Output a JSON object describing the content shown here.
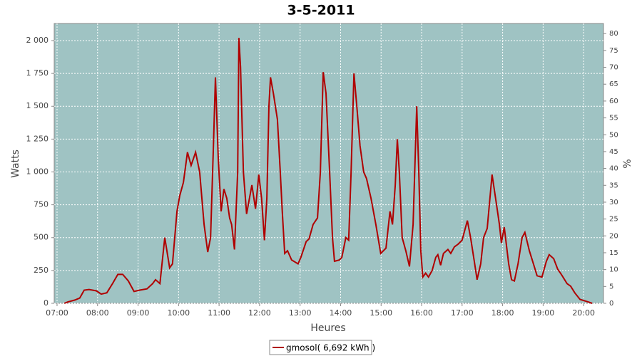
{
  "chart_data": {
    "type": "line",
    "title": "3-5-2011",
    "x_label": "Heures",
    "y_label": "Watts",
    "y2_label": "%",
    "grid": true,
    "legend": "bottom",
    "xlim": [
      6.93,
      20.49
    ],
    "xticks": [
      {
        "value": 7,
        "label": "07:00"
      },
      {
        "value": 8,
        "label": "08:00"
      },
      {
        "value": 9,
        "label": "09:00"
      },
      {
        "value": 10,
        "label": "10:00"
      },
      {
        "value": 11,
        "label": "11:00"
      },
      {
        "value": 12,
        "label": "12:00"
      },
      {
        "value": 13,
        "label": "13:00"
      },
      {
        "value": 14,
        "label": "14:00"
      },
      {
        "value": 15,
        "label": "15:00"
      },
      {
        "value": 16,
        "label": "16:00"
      },
      {
        "value": 17,
        "label": "17:00"
      },
      {
        "value": 18,
        "label": "18:00"
      },
      {
        "value": 19,
        "label": "19:00"
      },
      {
        "value": 20,
        "label": "20:00"
      }
    ],
    "ylim": [
      0,
      2130
    ],
    "yticks": [
      0,
      250,
      500,
      750,
      {
        "value": 1000,
        "label": "1 000"
      },
      {
        "value": 1250,
        "label": "1 250"
      },
      {
        "value": 1500,
        "label": "1 500"
      },
      {
        "value": 1750,
        "label": "1 750"
      },
      {
        "value": 2000,
        "label": "2 000"
      }
    ],
    "y2lim": [
      0,
      83
    ],
    "y2ticks": [
      0,
      5,
      10,
      15,
      20,
      25,
      30,
      35,
      40,
      45,
      50,
      55,
      60,
      65,
      70,
      75,
      80
    ],
    "x": [
      7.18,
      7.26,
      7.44,
      7.56,
      7.67,
      7.79,
      7.97,
      8.09,
      8.23,
      8.37,
      8.5,
      8.62,
      8.76,
      8.9,
      9.04,
      9.22,
      9.36,
      9.43,
      9.54,
      9.66,
      9.78,
      9.85,
      9.96,
      10.03,
      10.12,
      10.22,
      10.31,
      10.42,
      10.52,
      10.63,
      10.72,
      10.79,
      10.86,
      10.91,
      10.98,
      11.05,
      11.12,
      11.19,
      11.26,
      11.31,
      11.38,
      11.46,
      11.49,
      11.53,
      11.6,
      11.68,
      11.81,
      11.9,
      11.98,
      12.05,
      12.12,
      12.18,
      12.23,
      12.27,
      12.34,
      12.44,
      12.51,
      12.56,
      12.62,
      12.69,
      12.79,
      12.95,
      13.02,
      13.15,
      13.22,
      13.32,
      13.43,
      13.5,
      13.57,
      13.64,
      13.73,
      13.8,
      13.85,
      13.97,
      14.03,
      14.13,
      14.2,
      14.26,
      14.33,
      14.4,
      14.48,
      14.57,
      14.64,
      14.75,
      14.87,
      14.99,
      15.12,
      15.22,
      15.28,
      15.35,
      15.4,
      15.45,
      15.52,
      15.61,
      15.7,
      15.79,
      15.88,
      15.93,
      15.98,
      16.03,
      16.1,
      16.17,
      16.26,
      16.35,
      16.4,
      16.47,
      16.54,
      16.65,
      16.72,
      16.81,
      16.9,
      17.0,
      17.13,
      17.21,
      17.3,
      17.37,
      17.46,
      17.53,
      17.62,
      17.74,
      17.85,
      17.92,
      17.97,
      18.04,
      18.15,
      18.22,
      18.29,
      18.38,
      18.48,
      18.55,
      18.66,
      18.76,
      18.85,
      18.97,
      19.08,
      19.15,
      19.26,
      19.36,
      19.45,
      19.59,
      19.68,
      19.78,
      19.91,
      20.12,
      20.21
    ],
    "series": [
      {
        "name": "gmosol( 6,692 kWh )",
        "color": "#b00000",
        "values": [
          0,
          10,
          25,
          40,
          100,
          105,
          95,
          70,
          80,
          150,
          220,
          220,
          170,
          90,
          100,
          110,
          150,
          180,
          150,
          500,
          270,
          300,
          700,
          820,
          920,
          1150,
          1050,
          1150,
          1000,
          600,
          390,
          500,
          1200,
          1720,
          1100,
          700,
          870,
          800,
          650,
          600,
          410,
          1000,
          2020,
          1800,
          1000,
          680,
          900,
          720,
          980,
          800,
          480,
          800,
          1500,
          1720,
          1600,
          1400,
          1000,
          700,
          380,
          400,
          330,
          300,
          350,
          470,
          490,
          600,
          650,
          1000,
          1760,
          1600,
          1000,
          500,
          320,
          330,
          350,
          500,
          480,
          1000,
          1750,
          1500,
          1200,
          1000,
          950,
          800,
          600,
          380,
          420,
          700,
          600,
          900,
          1250,
          1000,
          500,
          400,
          280,
          600,
          1500,
          1000,
          400,
          200,
          230,
          200,
          250,
          350,
          370,
          290,
          380,
          410,
          380,
          430,
          450,
          480,
          630,
          500,
          320,
          180,
          300,
          500,
          570,
          980,
          750,
          600,
          460,
          580,
          300,
          180,
          170,
          300,
          500,
          540,
          400,
          300,
          210,
          200,
          320,
          370,
          340,
          260,
          220,
          150,
          130,
          80,
          30,
          10,
          0
        ]
      }
    ]
  }
}
